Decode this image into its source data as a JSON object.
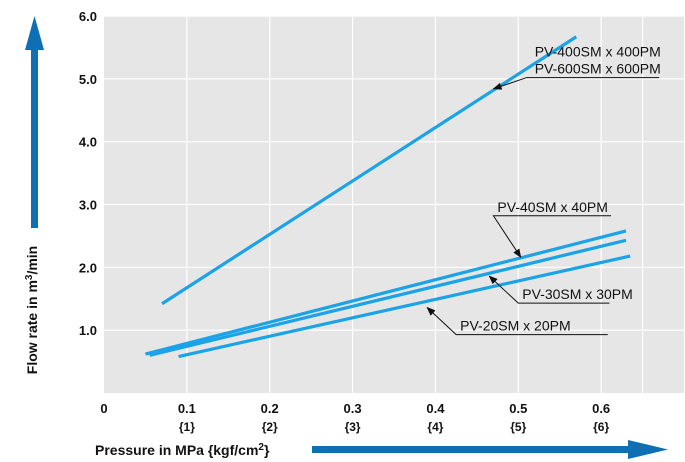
{
  "chart_data": {
    "type": "line",
    "title": "",
    "xlabel_parts": [
      "Pressure in MPa {kgf/cm",
      "2",
      "}"
    ],
    "ylabel_parts": [
      "Flow rate in m",
      "3",
      "/min"
    ],
    "xlim": [
      0,
      0.7
    ],
    "ylim": [
      0,
      6.0
    ],
    "grid": true,
    "colors": {
      "series": "#1aa3e8",
      "plot_bg": "#e6e6e6",
      "grid": "#ffffff",
      "arrow": "#0e6fb4"
    },
    "x_ticks": [
      {
        "value": 0,
        "label": "0",
        "sub": ""
      },
      {
        "value": 0.1,
        "label": "0.1",
        "sub": "{1}"
      },
      {
        "value": 0.2,
        "label": "0.2",
        "sub": "{2}"
      },
      {
        "value": 0.3,
        "label": "0.3",
        "sub": "{3}"
      },
      {
        "value": 0.4,
        "label": "0.4",
        "sub": "{4}"
      },
      {
        "value": 0.5,
        "label": "0.5",
        "sub": "{5}"
      },
      {
        "value": 0.6,
        "label": "0.6",
        "sub": "{6}"
      }
    ],
    "y_ticks": [
      {
        "value": 1.0,
        "label": "1.0"
      },
      {
        "value": 2.0,
        "label": "2.0"
      },
      {
        "value": 3.0,
        "label": "3.0"
      },
      {
        "value": 4.0,
        "label": "4.0"
      },
      {
        "value": 5.0,
        "label": "5.0"
      },
      {
        "value": 6.0,
        "label": "6.0"
      }
    ],
    "series": [
      {
        "x": [
          0.07,
          0.57
        ],
        "y": [
          1.42,
          5.67
        ],
        "labels": [
          "PV-400SM x 400PM",
          "PV-600SM x 600PM"
        ]
      },
      {
        "x": [
          0.05,
          0.63
        ],
        "y": [
          0.62,
          2.58
        ],
        "labels": [
          "PV-40SM x 40PM"
        ]
      },
      {
        "x": [
          0.055,
          0.63
        ],
        "y": [
          0.6,
          2.43
        ],
        "labels": [
          "PV-30SM x 30PM"
        ]
      },
      {
        "x": [
          0.09,
          0.635
        ],
        "y": [
          0.58,
          2.18
        ],
        "labels": [
          "PV-20SM x 20PM"
        ]
      }
    ],
    "annotations": [
      {
        "series": 0,
        "lines": [
          "PV-400SM x 400PM",
          "PV-600SM x 600PM"
        ],
        "target": [
          0.47,
          4.84
        ],
        "elbow": [
          0.51,
          5.02
        ],
        "end": [
          0.67,
          5.02
        ],
        "text_at": [
          0.515,
          5.02
        ]
      },
      {
        "series": 1,
        "lines": [
          "PV-40SM x 40PM"
        ],
        "target": [
          0.503,
          2.16
        ],
        "elbow": [
          0.47,
          2.82
        ],
        "end": [
          0.612,
          2.82
        ],
        "text_at": [
          0.47,
          2.82
        ]
      },
      {
        "series": 2,
        "lines": [
          "PV-30SM x 30PM"
        ],
        "target": [
          0.465,
          1.86
        ],
        "elbow": [
          0.5,
          1.43
        ],
        "end": [
          0.61,
          1.43
        ],
        "text_at": [
          0.5,
          1.43
        ]
      },
      {
        "series": 3,
        "lines": [
          "PV-20SM x 20PM"
        ],
        "target": [
          0.39,
          1.36
        ],
        "elbow": [
          0.425,
          0.93
        ],
        "end": [
          0.608,
          0.93
        ],
        "text_at": [
          0.425,
          0.93
        ]
      }
    ]
  }
}
